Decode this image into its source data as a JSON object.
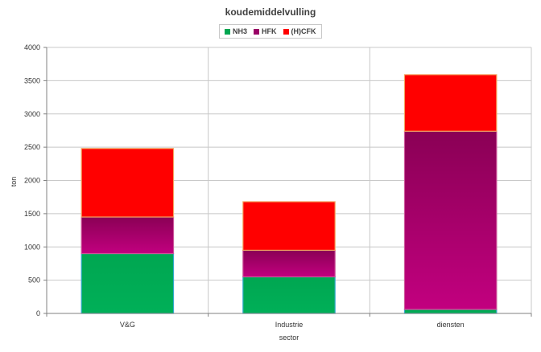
{
  "chart_data": {
    "type": "bar",
    "stacked": true,
    "title": "koudemiddelvulling",
    "xlabel": "sector",
    "ylabel": "ton",
    "ylim": [
      0,
      4000
    ],
    "yticks": [
      0,
      500,
      1000,
      1500,
      2000,
      2500,
      3000,
      3500,
      4000
    ],
    "categories": [
      "V&G",
      "Industrie",
      "diensten"
    ],
    "series": [
      {
        "name": "NH3",
        "values": [
          900,
          550,
          60
        ],
        "color": "#00a651"
      },
      {
        "name": "HFK",
        "values": [
          550,
          400,
          2680
        ],
        "color": "#990066"
      },
      {
        "name": "(H)CFK",
        "values": [
          1030,
          730,
          850
        ],
        "color": "#ff0000"
      }
    ],
    "legend_position": "top-center",
    "grid": true
  }
}
